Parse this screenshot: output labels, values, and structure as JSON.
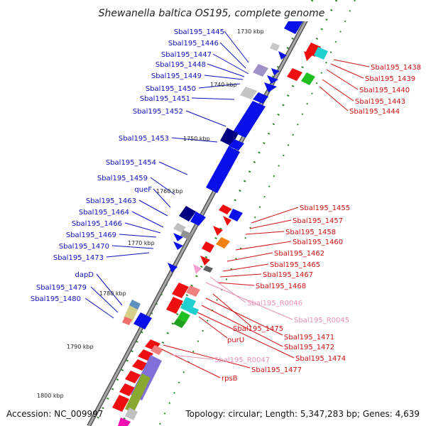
{
  "title": "Shewanella baltica OS195, complete genome",
  "footer": {
    "accession": "Accession: NC_009997",
    "topology": "Topology: circular; Length: 5,347,283 bp; Genes: 4,639"
  },
  "ticks": [
    "1730 kbp",
    "1740 kbp",
    "1750 kbp",
    "1760 kbp",
    "1770 kbp",
    "1780 kbp",
    "1790 kbp",
    "1800 kbp"
  ],
  "colors": {
    "left_label": "#1010c0",
    "right_label": "#d01010",
    "rna_label": "#e890b8",
    "backbone": "#8a8a8a",
    "forward_gene": "#0a10e8",
    "reverse_gene": "#ee1010",
    "tick": "#2e8b2e"
  },
  "left_labels": [
    "Sbal195_1445",
    "Sbal195_1446",
    "Sbal195_1447",
    "Sbal195_1448",
    "Sbal195_1449",
    "Sbal195_1450",
    "Sbal195_1451",
    "Sbal195_1452",
    "Sbal195_1453",
    "Sbal195_1454",
    "Sbal195_1459",
    "queF",
    "Sbal195_1463",
    "Sbal195_1464",
    "Sbal195_1466",
    "Sbal195_1469",
    "Sbal195_1470",
    "Sbal195_1473",
    "dapD",
    "Sbal195_1479",
    "Sbal195_1480"
  ],
  "right_labels": [
    "Sbal195_1438",
    "Sbal195_1439",
    "Sbal195_1440",
    "Sbal195_1443",
    "Sbal195_1444",
    "Sbal195_1455",
    "Sbal195_1457",
    "Sbal195_1458",
    "Sbal195_1460",
    "Sbal195_1462",
    "Sbal195_1465",
    "Sbal195_1467",
    "Sbal195_1468",
    "Sbal195_R0046",
    "Sbal195_R0045",
    "Sbal195_1475",
    "Sbal195_1471",
    "purU",
    "Sbal195_1472",
    "Sbal195_1474",
    "Sbal195_R0047",
    "Sbal195_1477",
    "rpsB"
  ]
}
